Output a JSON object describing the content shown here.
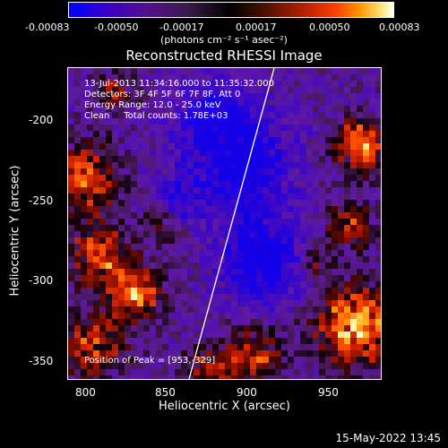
{
  "colorbar": {
    "ticks": [
      "-0.00083",
      "-0.00050",
      "-0.00017",
      "0.00017",
      "0.00050",
      "0.00083"
    ],
    "units": "(photons cm⁻² s⁻¹ asec⁻²)"
  },
  "plot": {
    "title": "Reconstructed RHESSI Image",
    "info_lines": [
      "13-Jul-2013 11:34:16.000 to 11:35:32.000",
      "Detectors: 3F 4F 5F 6F 7F 8F, Att 0",
      "Energy Range: 12.0 - 25.0 keV",
      "Clean     Total counts: 1.78E+03"
    ],
    "peak_text": "Position of Peak = [953,-329]",
    "xlabel": "Heliocentric X (arcsec)",
    "ylabel": "Heliocentric Y (arcsec)",
    "xticks": [
      "800",
      "850",
      "900",
      "950"
    ],
    "yticks": [
      "-200",
      "-250",
      "-300",
      "-350"
    ],
    "xlim": [
      790,
      980
    ],
    "ylim": [
      -365,
      -175
    ],
    "limb_line": {
      "x_top": 922,
      "x_bottom": 872
    }
  },
  "timestamp": "15-May-2022 13:45"
}
